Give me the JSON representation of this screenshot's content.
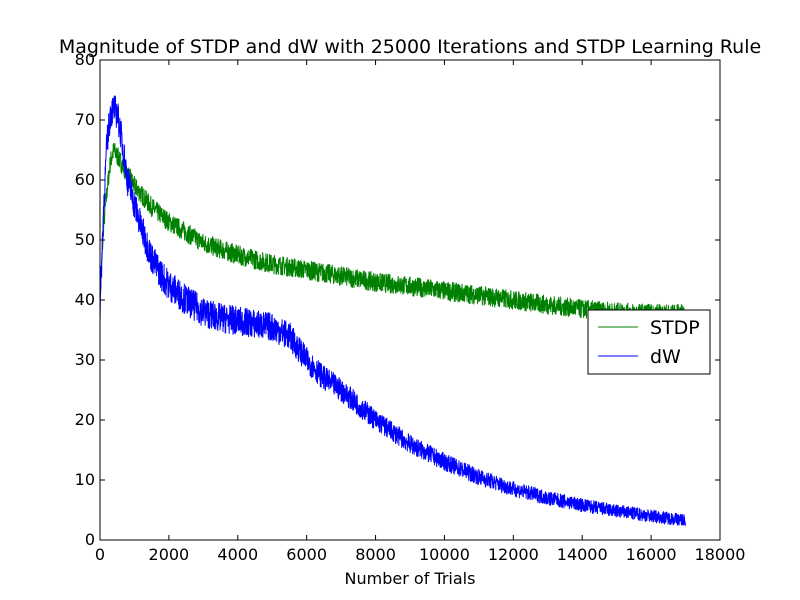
{
  "chart_data": {
    "type": "line",
    "title": "Magnitude of STDP and dW with 25000 Iterations and STDP Learning Rule",
    "xlabel": "Number of Trials",
    "ylabel": "",
    "xlim": [
      0,
      18000
    ],
    "ylim": [
      0,
      80
    ],
    "xticks": [
      0,
      2000,
      4000,
      6000,
      8000,
      10000,
      12000,
      14000,
      16000,
      18000
    ],
    "yticks": [
      0,
      10,
      20,
      30,
      40,
      50,
      60,
      70,
      80
    ],
    "grid": false,
    "legend_position": "center-right",
    "series": [
      {
        "name": "STDP",
        "color": "#008000",
        "x": [
          0,
          100,
          200,
          300,
          400,
          500,
          700,
          1000,
          1500,
          2000,
          3000,
          4000,
          5000,
          6000,
          7000,
          8000,
          9000,
          10000,
          11000,
          12000,
          13000,
          14000,
          15000,
          16000,
          17000
        ],
        "y": [
          40,
          52,
          58,
          63,
          65,
          64,
          62,
          59,
          55.5,
          53,
          49.5,
          47.5,
          46,
          45,
          44,
          43,
          42.3,
          41.5,
          40.8,
          40,
          39.2,
          38.5,
          38,
          37.8,
          37.7
        ],
        "noise": 1.0
      },
      {
        "name": "dW",
        "color": "#0000ff",
        "x": [
          0,
          100,
          200,
          300,
          400,
          500,
          600,
          700,
          800,
          1000,
          1200,
          1500,
          1800,
          2000,
          2500,
          3000,
          3500,
          4000,
          4500,
          5000,
          5500,
          6000,
          6500,
          7000,
          7500,
          8000,
          9000,
          10000,
          11000,
          12000,
          13000,
          14000,
          15000,
          16000,
          17000
        ],
        "y": [
          38,
          55,
          66,
          71,
          72,
          71,
          68,
          64,
          60,
          56,
          52,
          47,
          44,
          42.5,
          40,
          38,
          37,
          36.5,
          36,
          35.5,
          34,
          30,
          27,
          25,
          22.5,
          20,
          16,
          13,
          10.5,
          8.5,
          7,
          5.8,
          4.8,
          4,
          3.3
        ],
        "noise": 1.6
      }
    ]
  }
}
